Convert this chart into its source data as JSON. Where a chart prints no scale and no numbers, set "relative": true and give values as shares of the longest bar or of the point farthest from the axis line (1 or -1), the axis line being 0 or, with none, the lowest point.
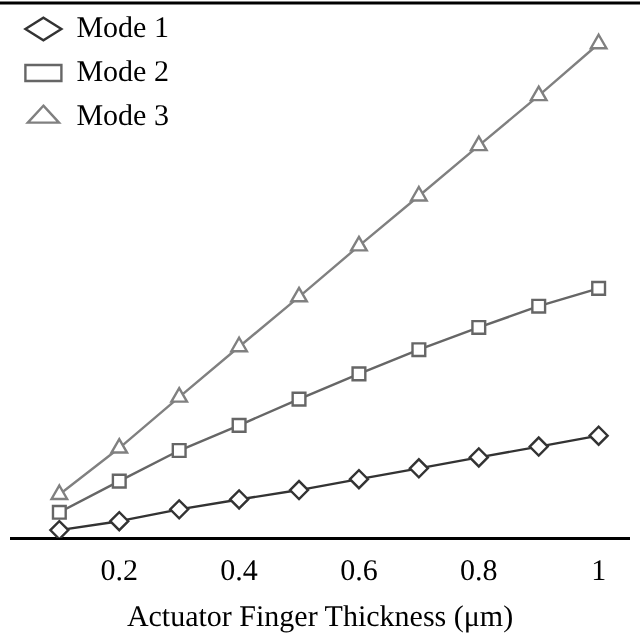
{
  "chart_data": {
    "type": "line",
    "xlabel": "Actuator Finger Thickness (μm)",
    "relative": true,
    "x": [
      0.1,
      0.2,
      0.3,
      0.4,
      0.5,
      0.6,
      0.7,
      0.8,
      0.9,
      1
    ],
    "xlim": [
      0.02,
      1.05
    ],
    "xticks": [
      0.2,
      0.4,
      0.6,
      0.8,
      1
    ],
    "legend": "top left",
    "grid": false,
    "line_style": "solid",
    "series": [
      {
        "name": "Mode 1",
        "color": "#333333",
        "marker": "diamond",
        "values": [
          0.016,
          0.034,
          0.058,
          0.078,
          0.097,
          0.119,
          0.141,
          0.163,
          0.185,
          0.207
        ]
      },
      {
        "name": "Mode 2",
        "color": "#666666",
        "marker": "square",
        "values": [
          0.052,
          0.115,
          0.177,
          0.228,
          0.281,
          0.332,
          0.381,
          0.426,
          0.469,
          0.505
        ]
      },
      {
        "name": "Mode 3",
        "color": "#808080",
        "marker": "triangle",
        "values": [
          0.088,
          0.182,
          0.285,
          0.387,
          0.488,
          0.591,
          0.692,
          0.794,
          0.895,
          1
        ]
      }
    ]
  }
}
